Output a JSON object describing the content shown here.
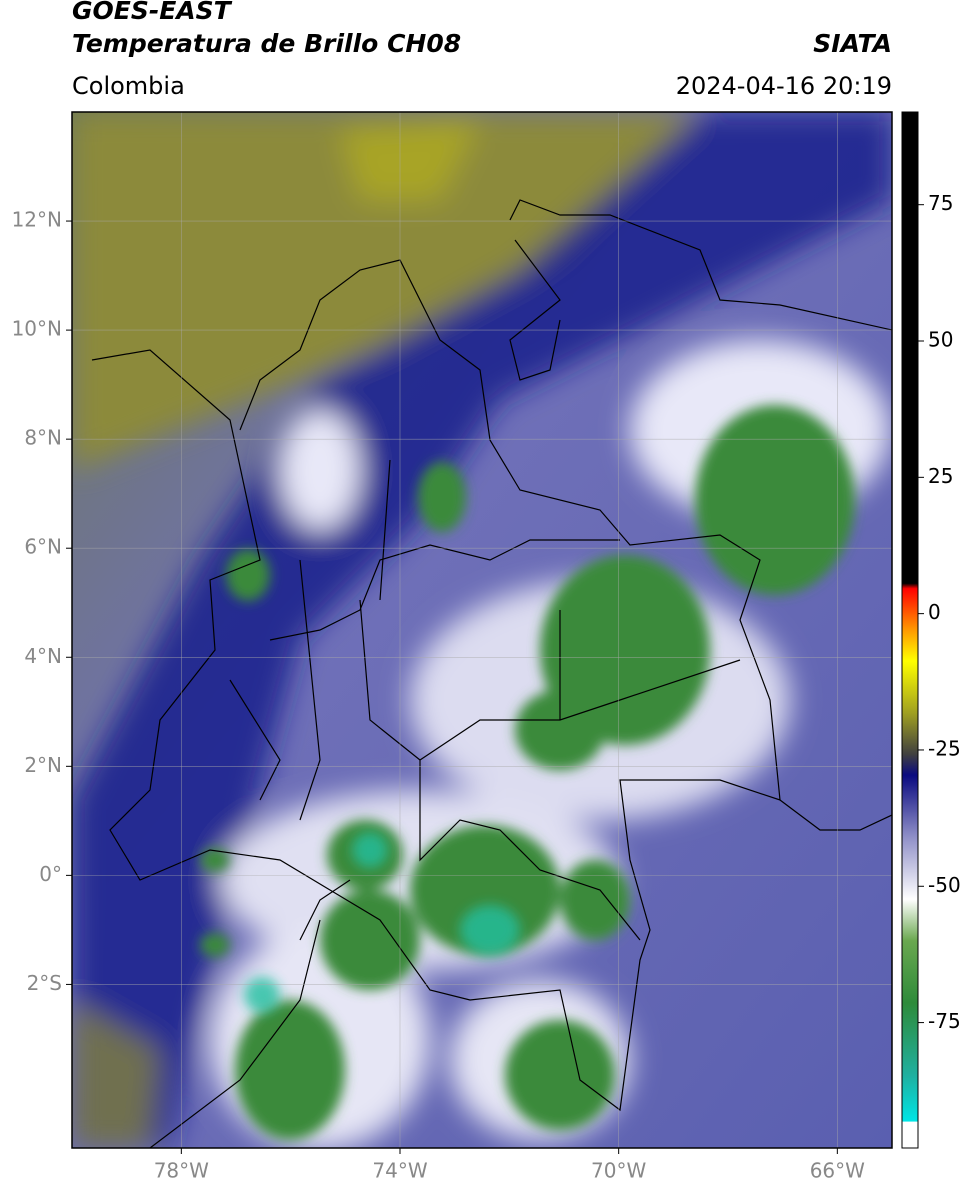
{
  "header": {
    "title": "GOES-EAST",
    "subtitle": "Temperatura de Brillo CH08",
    "source": "SIATA",
    "region": "Colombia",
    "datetime": "2024-04-16 20:19"
  },
  "map": {
    "xlim": [
      -80,
      -65
    ],
    "ylim": [
      -5,
      14
    ],
    "xticks": [
      {
        "value": -78,
        "label": "78°W"
      },
      {
        "value": -74,
        "label": "74°W"
      },
      {
        "value": -70,
        "label": "70°W"
      },
      {
        "value": -66,
        "label": "66°W"
      }
    ],
    "yticks": [
      {
        "value": 12,
        "label": "12°N"
      },
      {
        "value": 10,
        "label": "10°N"
      },
      {
        "value": 8,
        "label": "8°N"
      },
      {
        "value": 6,
        "label": "6°N"
      },
      {
        "value": 4,
        "label": "4°N"
      },
      {
        "value": 2,
        "label": "2°N"
      },
      {
        "value": 0,
        "label": "0°"
      },
      {
        "value": -2,
        "label": "2°S"
      }
    ],
    "grid": true
  },
  "colorbar": {
    "lim": [
      -98,
      92
    ],
    "ticks": [
      75,
      50,
      25,
      0,
      -25,
      -50,
      -75
    ]
  }
}
